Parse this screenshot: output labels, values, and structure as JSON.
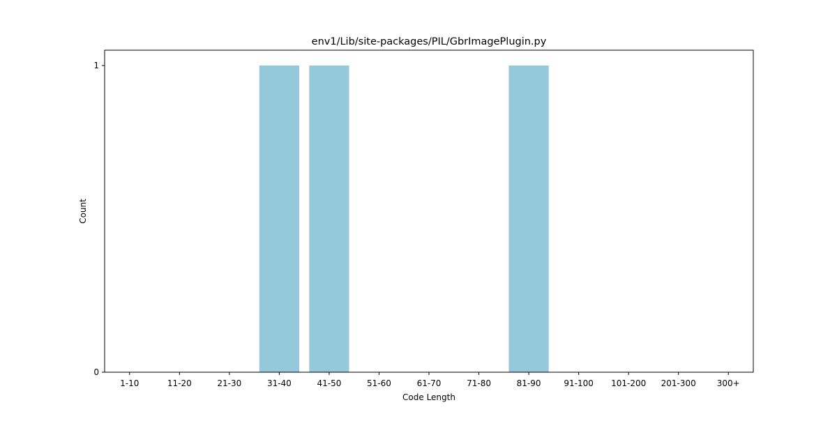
{
  "chart_data": {
    "type": "bar",
    "title": "env1/Lib/site-packages/PIL/GbrImagePlugin.py",
    "xlabel": "Code Length",
    "ylabel": "Count",
    "categories": [
      "1-10",
      "11-20",
      "21-30",
      "31-40",
      "41-50",
      "51-60",
      "61-70",
      "71-80",
      "81-90",
      "91-100",
      "101-200",
      "201-300",
      "300+"
    ],
    "values": [
      0,
      0,
      0,
      1,
      1,
      0,
      0,
      0,
      1,
      0,
      0,
      0,
      0
    ],
    "ylim": [
      0,
      1.05
    ],
    "yticks": [
      0,
      1
    ],
    "bar_color": "#96c8dc",
    "grid": false,
    "legend": "none"
  }
}
